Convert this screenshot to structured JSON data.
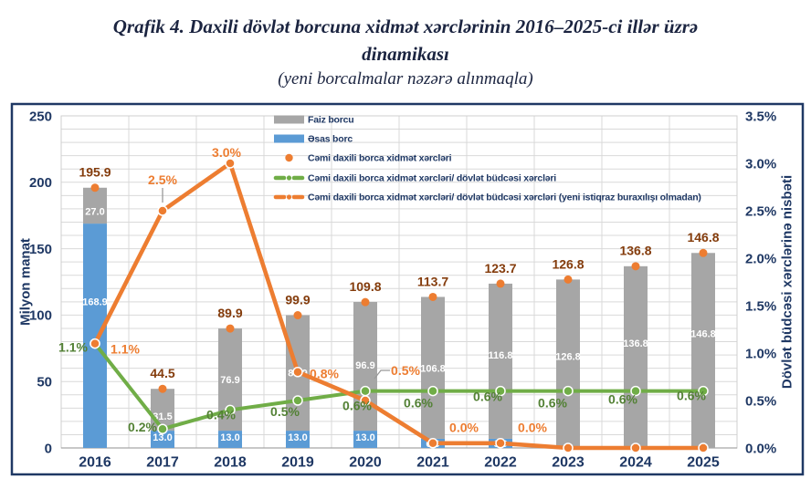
{
  "header": {
    "title_line1": "Qrafik 4. Daxili dövlət borcuna xidmət xərclərinin 2016–2025-ci illər üzrə",
    "title_line2": "dinamikası",
    "subtitle": "(yeni borcalmalar nəzərə alınmaqla)"
  },
  "chart_data": {
    "type": "bar",
    "subtype": "stacked-bar-with-lines-combo",
    "categories": [
      "2016",
      "2017",
      "2018",
      "2019",
      "2020",
      "2021",
      "2022",
      "2023",
      "2024",
      "2025"
    ],
    "left_axis": {
      "label": "Milyon manat",
      "min": 0,
      "max": 250,
      "tick_step": 50,
      "tick_labels": [
        "0",
        "50",
        "100",
        "150",
        "200",
        "250"
      ],
      "minor_grid_step": 10
    },
    "right_axis": {
      "label": "Dövlət büdcəsi xərclərinə nisbəti",
      "min": 0,
      "max": 3.5,
      "tick_step": 0.5,
      "tick_labels": [
        "0.0%",
        "0.5%",
        "1.0%",
        "1.5%",
        "2.0%",
        "2.5%",
        "3.0%",
        "3.5%"
      ]
    },
    "grid": {
      "horizontal": true,
      "vertical": true
    },
    "series": [
      {
        "name": "Əsas borc",
        "kind": "bar-stack",
        "axis": "left",
        "color": "#5B9BD5",
        "values": [
          168.9,
          13.0,
          13.0,
          13.0,
          13.0,
          6.9,
          6.9,
          0,
          0,
          0
        ],
        "labels": [
          "168.9",
          "13.0",
          "13.0",
          "13.0",
          "13.0",
          "6.9",
          "6.9",
          "",
          "",
          ""
        ],
        "label_value_pos": [
          110,
          8,
          8,
          8,
          8,
          3.5,
          3.5,
          null,
          null,
          null
        ]
      },
      {
        "name": "Faiz borcu",
        "kind": "bar-stack",
        "axis": "left",
        "color": "#A6A6A6",
        "values": [
          27.0,
          31.5,
          76.9,
          86.9,
          96.9,
          106.8,
          116.8,
          126.8,
          136.8,
          146.8
        ],
        "labels": [
          "27.0",
          "31.5",
          "76.9",
          "86.9",
          "96.9",
          "106.8",
          "116.8",
          "126.8",
          "136.8",
          "146.8"
        ],
        "label_value_pos": [
          178,
          24,
          51.5,
          56.5,
          62.5,
          60,
          70,
          69,
          79,
          86
        ]
      },
      {
        "name": "Cəmi daxili borca xidmət xərcləri",
        "kind": "points",
        "axis": "left",
        "color": "#ED7D31",
        "label_color": "#843C0C",
        "values": [
          195.9,
          44.5,
          89.9,
          99.9,
          109.8,
          113.7,
          123.7,
          126.8,
          136.8,
          146.8
        ],
        "labels": [
          "195.9",
          "44.5",
          "89.9",
          "99.9",
          "109.8",
          "113.7",
          "123.7",
          "126.8",
          "136.8",
          "146.8"
        ]
      },
      {
        "name": "Cəmi daxili borca xidmət xərcləri/ dövlət büdcəsi xərcləri",
        "kind": "line",
        "axis": "right",
        "color": "#70AD47",
        "label_color": "#538135",
        "values": [
          1.1,
          0.2,
          0.4,
          0.5,
          0.6,
          0.6,
          0.6,
          0.6,
          0.6,
          0.6
        ],
        "labels": [
          "1.1%",
          "0.2%",
          "0.4%",
          "0.5%",
          "0.6%",
          "0.6%",
          "0.6%",
          "0.6%",
          "0.6%",
          "0.6%"
        ],
        "label_offsets": [
          [
            -24,
            4
          ],
          [
            -22,
            -2
          ],
          [
            -10,
            5
          ],
          [
            -14,
            12
          ],
          [
            -9,
            16
          ],
          [
            -16,
            13
          ],
          [
            -14,
            6
          ],
          [
            -17,
            13
          ],
          [
            -14,
            9
          ],
          [
            -13,
            5
          ]
        ],
        "leaders": []
      },
      {
        "name": "Cəmi daxili borca xidmət xərcləri/ dövlət büdcəsi xərcləri (yeni istiqraz buraxılışı olmadan)",
        "kind": "line",
        "axis": "right",
        "color": "#ED7D31",
        "label_color": "#ED7D31",
        "values": [
          1.1,
          2.5,
          3.0,
          0.8,
          0.5,
          0.05,
          0.05,
          0,
          0,
          0
        ],
        "labels": [
          "1.1%",
          "2.5%",
          "3.0%",
          "0.8%",
          "0.5%",
          "0.0%",
          "0.0%",
          "",
          "",
          ""
        ],
        "label_offsets": [
          [
            33,
            6
          ],
          [
            0,
            -34
          ],
          [
            -4,
            -12
          ],
          [
            29,
            2
          ],
          [
            44,
            -33
          ],
          [
            34,
            -17
          ],
          [
            35,
            -17
          ],
          [
            0,
            0
          ],
          [
            0,
            0
          ],
          [
            0,
            0
          ]
        ],
        "leaders": [
          1,
          4
        ]
      }
    ],
    "legend": [
      {
        "label": "Faiz borcu",
        "swatch": "bar",
        "color": "#A6A6A6"
      },
      {
        "label": "Əsas borc",
        "swatch": "bar",
        "color": "#5B9BD5"
      },
      {
        "label": "Cəmi daxili borca xidmət xərcləri",
        "swatch": "dot",
        "color": "#ED7D31"
      },
      {
        "label": "Cəmi daxili borca xidmət xərcləri/ dövlət büdcəsi xərcləri",
        "swatch": "line-dot",
        "color": "#70AD47"
      },
      {
        "label": "Cəmi daxili borca xidmət xərcləri/ dövlət büdcəsi xərcləri (yeni istiqraz buraxılışı olmadan)",
        "swatch": "line-dot",
        "color": "#ED7D31"
      }
    ],
    "colors": {
      "frame": "#1F3864",
      "axis_text": "#1F3864",
      "grid": "#D9D9D9",
      "plot_border": "#CFCFCF",
      "baseline": "#A6A6A6",
      "segment_label": "#FFFFFF",
      "leader": "#999999"
    }
  }
}
